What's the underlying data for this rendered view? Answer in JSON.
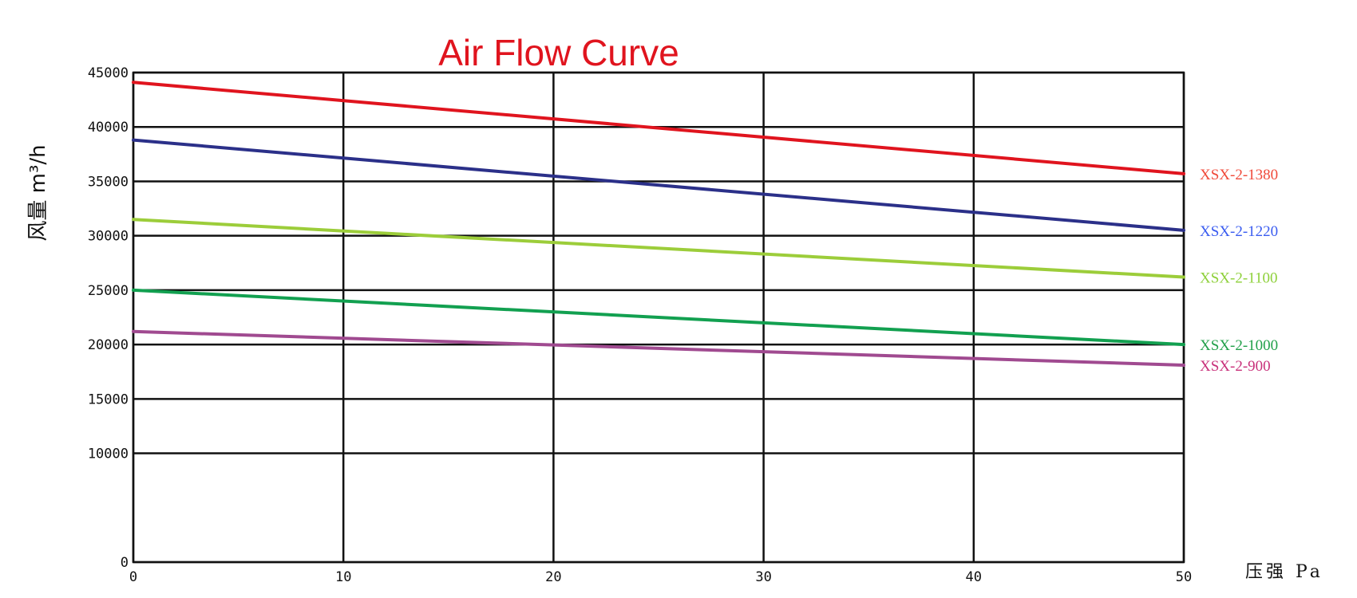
{
  "chart_data": {
    "type": "line",
    "title": "Air Flow Curve",
    "xlabel": "压强 Pa",
    "ylabel": "风量 m³/h",
    "xlim": [
      0,
      50
    ],
    "ylim": [
      0,
      45000
    ],
    "x_ticks": [
      "0",
      "10",
      "20",
      "30",
      "40",
      "50"
    ],
    "y_ticks": [
      "0",
      "10000",
      "15000",
      "20000",
      "25000",
      "30000",
      "35000",
      "40000",
      "45000"
    ],
    "y_tick_values": [
      0,
      10000,
      15000,
      20000,
      25000,
      30000,
      35000,
      40000,
      45000
    ],
    "grid": true,
    "x": [
      0,
      50
    ],
    "series": [
      {
        "name": "XSX-2-1380",
        "values": [
          44100,
          35700
        ],
        "color": "#e0141e",
        "label_color": "#f04a3a"
      },
      {
        "name": "XSX-2-1220",
        "values": [
          38800,
          30500
        ],
        "color": "#2b3089",
        "label_color": "#3a5cf0"
      },
      {
        "name": "XSX-2-1100",
        "values": [
          31500,
          26200
        ],
        "color": "#9ccd3a",
        "label_color": "#8ed03a"
      },
      {
        "name": "XSX-2-1000",
        "values": [
          25000,
          20000
        ],
        "color": "#12a050",
        "label_color": "#22a04a"
      },
      {
        "name": "XSX-2-900",
        "values": [
          21200,
          18100
        ],
        "color": "#a04a90",
        "label_color": "#c8307a"
      }
    ]
  }
}
